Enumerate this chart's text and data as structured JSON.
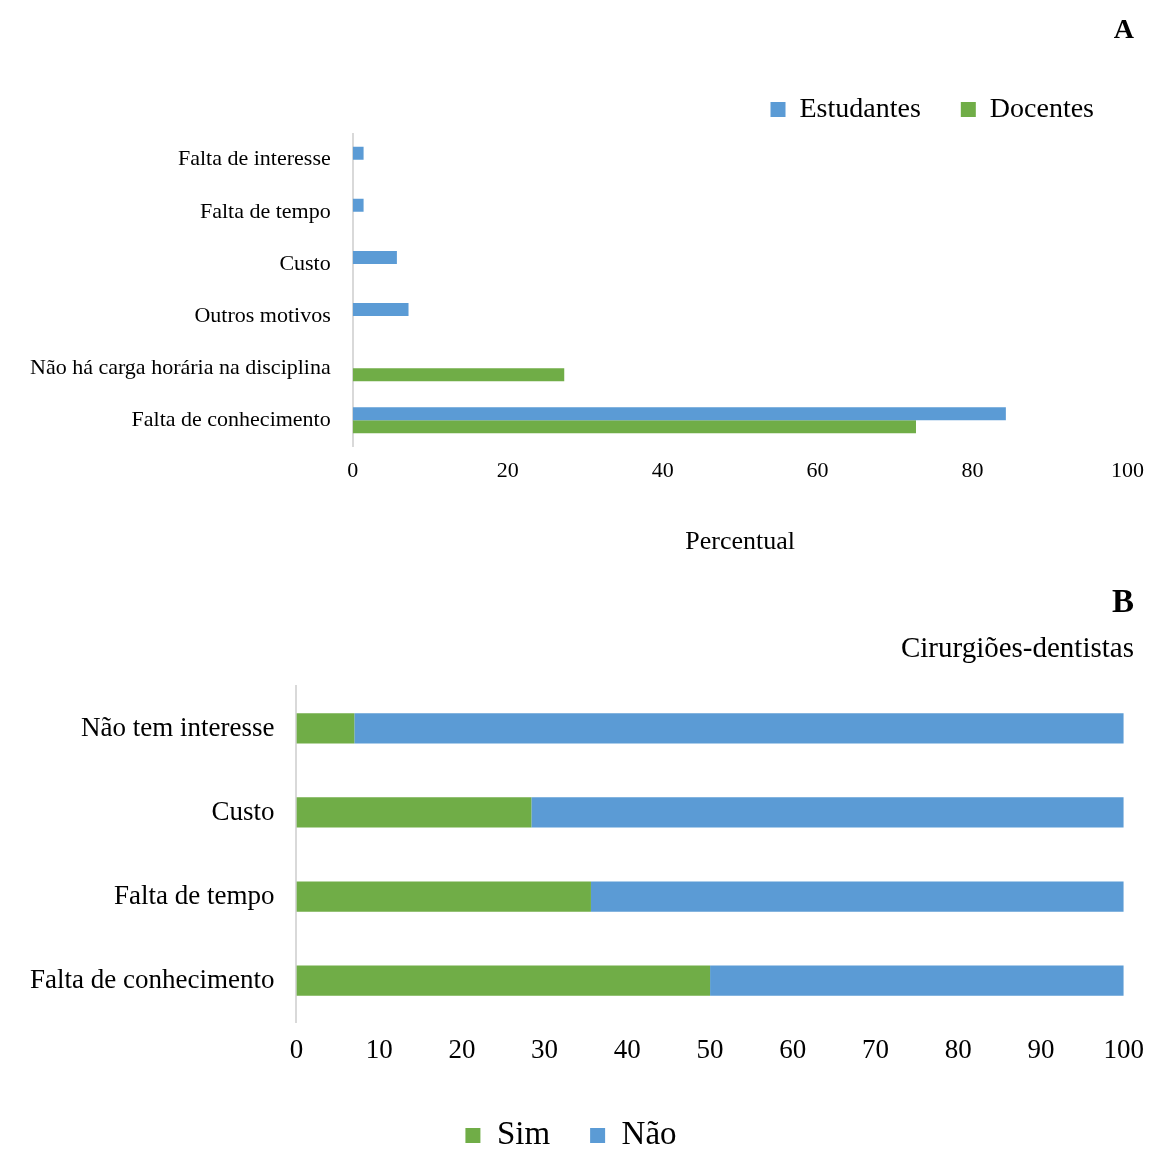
{
  "chart_data": [
    {
      "type": "bar",
      "orientation": "horizontal",
      "title": "A",
      "xlabel": "Percentual",
      "categories": [
        "Falta de interesse",
        "Falta de tempo",
        "Custo",
        "Outros motivos",
        "Não há carga horária na disciplina",
        "Falta de conhecimento"
      ],
      "series": [
        {
          "name": "Estudantes",
          "color": "#5b9bd5",
          "values": [
            1.4,
            1.4,
            5.7,
            7.2,
            null,
            84.3
          ]
        },
        {
          "name": "Docentes",
          "color": "#70ad47",
          "values": [
            null,
            null,
            null,
            null,
            27.3,
            72.7
          ]
        }
      ],
      "xlim": [
        0,
        100
      ],
      "xticks": [
        0,
        20,
        40,
        60,
        80,
        100
      ],
      "grid": false,
      "legend": "top right"
    },
    {
      "type": "bar",
      "orientation": "horizontal",
      "stacked": true,
      "title": "B",
      "subtitle": "Cirurgiões-dentistas",
      "categories": [
        "Não tem interesse",
        "Custo",
        "Falta de tempo",
        "Falta de conhecimento"
      ],
      "series": [
        {
          "name": "Sim",
          "color": "#70ad47",
          "values": [
            7.0,
            28.4,
            35.6,
            50
          ]
        },
        {
          "name": "Não",
          "color": "#5b9bd5",
          "values": [
            93.0,
            71.6,
            64.4,
            50
          ]
        }
      ],
      "xlim": [
        0,
        100
      ],
      "xticks": [
        0,
        10,
        20,
        30,
        40,
        50,
        60,
        70,
        80,
        90,
        100
      ],
      "grid": false,
      "legend": "bottom"
    }
  ]
}
